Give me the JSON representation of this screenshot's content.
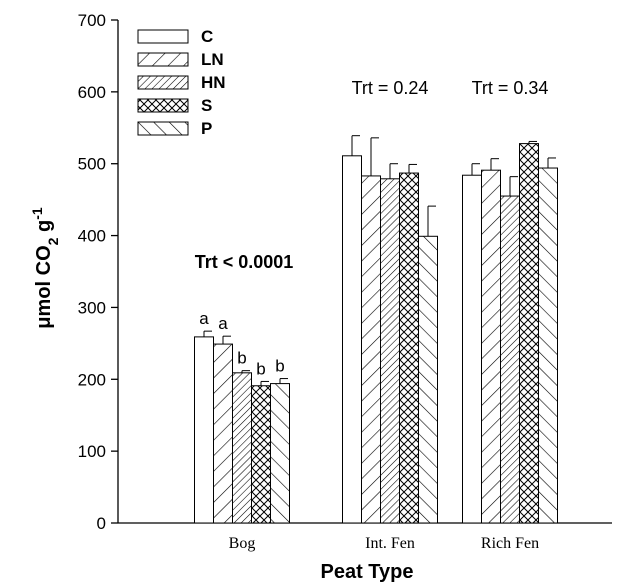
{
  "chart_data": {
    "type": "bar",
    "xlabel": "Peat Type",
    "ylabel_parts": [
      "μmol CO",
      "2",
      " g",
      "-1"
    ],
    "ylim": [
      0,
      700
    ],
    "yticks": [
      0,
      100,
      200,
      300,
      400,
      500,
      600,
      700
    ],
    "categories": [
      "Bog",
      "Int. Fen",
      "Rich Fen"
    ],
    "legend_position": "top-left",
    "series": [
      {
        "name": "C",
        "pattern": "none",
        "values": [
          259,
          511,
          484
        ],
        "errors": [
          8,
          28,
          16
        ]
      },
      {
        "name": "LN",
        "pattern": "diag-forward",
        "values": [
          249,
          483,
          491
        ],
        "errors": [
          11,
          53,
          16
        ]
      },
      {
        "name": "HN",
        "pattern": "diag-forward-dense",
        "values": [
          209,
          479,
          455
        ],
        "errors": [
          3,
          21,
          27
        ]
      },
      {
        "name": "S",
        "pattern": "crosshatch",
        "values": [
          191,
          487,
          528
        ],
        "errors": [
          6,
          12,
          3
        ]
      },
      {
        "name": "P",
        "pattern": "diag-backward",
        "values": [
          194,
          399,
          494
        ],
        "errors": [
          7,
          42,
          14
        ]
      }
    ],
    "group_annotations": [
      {
        "text": "Trt < 0.0001",
        "bold": true
      },
      {
        "text": "Trt = 0.24",
        "bold": false
      },
      {
        "text": "Trt = 0.34",
        "bold": false
      }
    ],
    "bar_letters": [
      [
        "a",
        "a",
        "b",
        "b",
        "b"
      ],
      [],
      []
    ]
  }
}
